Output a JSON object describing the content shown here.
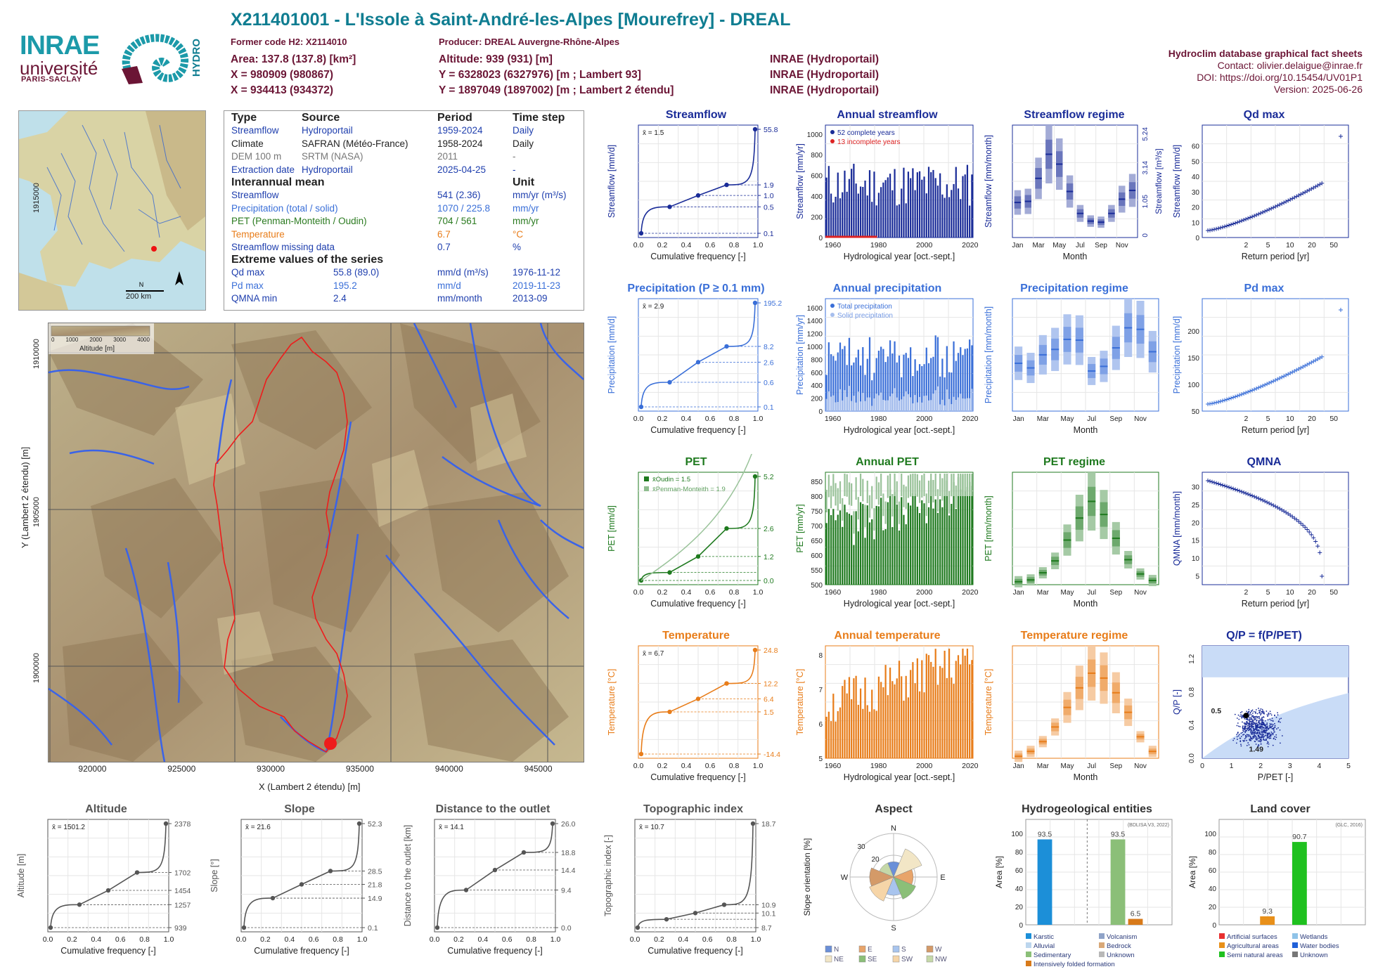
{
  "header": {
    "title": "X211401001 - L'Issole à Saint-André-les-Alpes [Mourefrey] - DREAL",
    "former_code": "Former code H2: X2114010",
    "producer": "Producer: DREAL Auvergne-Rhône-Alpes",
    "area": "Area: 137.8 (137.8) [km²]",
    "x93": "X = 980909 (980867)",
    "x2e": "X = 934413 (934372)",
    "altitude": "Altitude: 939 (931) [m]",
    "y93": "Y = 6328023 (6327976) [m ; Lambert 93]",
    "y2e": "Y = 1897049 (1897002) [m ; Lambert 2 étendu]",
    "src1": "INRAE (Hydroportail)",
    "src2": "INRAE (Hydroportail)",
    "src3": "INRAE (Hydroportail)",
    "db": "Hydroclim database graphical fact sheets",
    "contact": "Contact: olivier.delaigue@inrae.fr",
    "doi": "DOI: https://doi.org/10.15454/UV01P1",
    "version": "Version: 2025-06-26"
  },
  "logos": {
    "inrae": "INRAE",
    "univ": "université",
    "ps": "PARIS-SACLAY",
    "hydro": "HYDRO"
  },
  "infobox": {
    "head": [
      "Type",
      "Source",
      "Period",
      "Time step"
    ],
    "rows": [
      {
        "type": "Streamflow",
        "source": "Hydroportail",
        "period": "1959-2024",
        "step": "Daily",
        "color": "#1f3fae"
      },
      {
        "type": "Climate",
        "source": "SAFRAN (Météo-France)",
        "period": "1958-2024",
        "step": "Daily",
        "color": "#222"
      },
      {
        "type": "DEM 100 m",
        "source": "SRTM (NASA)",
        "period": "2011",
        "step": "-",
        "color": "#777"
      },
      {
        "type": "Extraction date",
        "source": "Hydroportail",
        "period": "2025-04-25",
        "step": "-",
        "color": "#1f3fae"
      }
    ],
    "mean_head": "Interannual mean",
    "unit_head": "Unit",
    "means": [
      {
        "label": "Streamflow",
        "value": "541 (2.36)",
        "unit": "mm/yr (m³/s)",
        "color": "#1f3fae"
      },
      {
        "label": "Precipitation (total / solid)",
        "value": "1070 / 225.8",
        "unit": "mm/yr",
        "color": "#3a6fd8"
      },
      {
        "label": "PET (Penman-Monteith / Oudin)",
        "value": "704 / 561",
        "unit": "mm/yr",
        "color": "#2a7a1f"
      },
      {
        "label": "Temperature",
        "value": "6.7",
        "unit": "°C",
        "color": "#e87d1a"
      },
      {
        "label": "Streamflow missing data",
        "value": "0.7",
        "unit": "%",
        "color": "#1f3fae"
      }
    ],
    "extreme_head": "Extreme values of the series",
    "extremes": [
      {
        "label": "Qd max",
        "value": "55.8 (89.0)",
        "unit": "mm/d (m³/s)",
        "date": "1976-11-12",
        "color": "#1f3fae"
      },
      {
        "label": "Pd max",
        "value": "195.2",
        "unit": "mm/d",
        "date": "2019-11-23",
        "color": "#3a6fd8"
      },
      {
        "label": "QMNA min",
        "value": "2.4",
        "unit": "mm/month",
        "date": "2013-09",
        "color": "#1f3fae"
      }
    ]
  },
  "map_small": {
    "scale": "200 km",
    "north": "N"
  },
  "map_big": {
    "xlabel": "X (Lambert 2 étendu) [m]",
    "ylabel": "Y (Lambert 2 étendu) [m]",
    "xticks": [
      "920000",
      "925000",
      "930000",
      "935000",
      "940000",
      "945000"
    ],
    "yticks": [
      "1900000",
      "1905000",
      "1910000",
      "1915000"
    ],
    "legend_title": "Altitude [m]",
    "legend_ticks": [
      "0",
      "1000",
      "2000",
      "3000",
      "4000"
    ]
  },
  "chart_data": [
    {
      "id": "streamflow",
      "type": "line",
      "title": "Streamflow",
      "xlabel": "Cumulative frequency [-]",
      "ylabel": "Streamflow [mm/d]",
      "mean": "x̄ = 1.5",
      "right_ticks": [
        "55.8",
        "1.9",
        "1.0",
        "0.5",
        "0.1"
      ],
      "x": [
        0,
        0.25,
        0.5,
        0.75,
        1
      ],
      "y": [
        0.1,
        0.5,
        1.0,
        1.9,
        55.8
      ],
      "color": "#1a2c98"
    },
    {
      "id": "annual_streamflow",
      "type": "bar",
      "title": "Annual streamflow",
      "xlabel": "Hydrological year [oct.-sept.]",
      "ylabel": "Streamflow [mm/yr]",
      "legend": [
        "52 complete years",
        "13 incomplete years"
      ],
      "x_ticks": [
        "1960",
        "1980",
        "2000",
        "2020"
      ],
      "y_ticks": [
        "0",
        "200",
        "400",
        "600",
        "800",
        "1000"
      ],
      "color": "#1a2c98"
    },
    {
      "id": "streamflow_regime",
      "type": "box",
      "title": "Streamflow regime",
      "xlabel": "Month",
      "ylabel": "Streamflow [mm/month]",
      "ylabel2": "Streamflow [m³/s]",
      "x_ticks": [
        "Jan",
        "Mar",
        "May",
        "Jul",
        "Sep",
        "Nov"
      ],
      "right_ticks": [
        "5.24",
        "3.14",
        "1.05",
        "0"
      ],
      "medians": [
        32,
        33,
        54,
        76,
        67,
        42,
        22,
        15,
        14,
        22,
        35,
        43
      ],
      "color": "#1a2c98"
    },
    {
      "id": "qd_max",
      "type": "scatter",
      "title": "Qd max",
      "xlabel": "Return period [yr]",
      "ylabel": "Streamflow [mm/d]",
      "x_ticks": [
        "2",
        "5",
        "10",
        "20",
        "50"
      ],
      "y_ticks": [
        "0",
        "10",
        "20",
        "30",
        "40",
        "50",
        "60"
      ],
      "max": 56,
      "color": "#1a2c98"
    },
    {
      "id": "precipitation",
      "type": "line",
      "title": "Precipitation (P ≥ 0.1 mm)",
      "xlabel": "Cumulative frequency [-]",
      "ylabel": "Precipitation [mm/d]",
      "mean": "x̄ = 2.9",
      "right_ticks": [
        "195.2",
        "8.2",
        "2.6",
        "0.6",
        "0.1"
      ],
      "x": [
        0,
        0.25,
        0.5,
        0.75,
        1
      ],
      "y": [
        0.1,
        0.6,
        2.6,
        8.2,
        195.2
      ],
      "color": "#3a6fd8"
    },
    {
      "id": "annual_precipitation",
      "type": "bar",
      "title": "Annual precipitation",
      "xlabel": "Hydrological year [oct.-sept.]",
      "ylabel": "Precipitation [mm/yr]",
      "legend": [
        "Total precipitation",
        "Solid precipitation"
      ],
      "x_ticks": [
        "1960",
        "1980",
        "2000",
        "2020"
      ],
      "y_ticks": [
        "0",
        "200",
        "400",
        "600",
        "800",
        "1000",
        "1200",
        "1400",
        "1600"
      ],
      "color": "#3a6fd8"
    },
    {
      "id": "precipitation_regime",
      "type": "box",
      "title": "Precipitation regime",
      "xlabel": "Month",
      "ylabel": "Precipitation [mm/month]",
      "x_ticks": [
        "Jan",
        "Mar",
        "May",
        "Jul",
        "Sep",
        "Nov"
      ],
      "medians": [
        62,
        56,
        73,
        80,
        93,
        92,
        52,
        58,
        82,
        108,
        106,
        77
      ],
      "color": "#3a6fd8"
    },
    {
      "id": "pd_max",
      "type": "scatter",
      "title": "Pd max",
      "xlabel": "Return period [yr]",
      "ylabel": "Precipitation [mm/d]",
      "x_ticks": [
        "2",
        "5",
        "10",
        "20",
        "50"
      ],
      "y_ticks": [
        "50",
        "100",
        "150",
        "200"
      ],
      "max": 195,
      "color": "#3a6fd8"
    },
    {
      "id": "pet",
      "type": "line",
      "title": "PET",
      "xlabel": "Cumulative frequency [-]",
      "ylabel": "PET [mm/d]",
      "legend": [
        "x̄Oudin = 1.5",
        "x̄Penman-Monteith = 1.9"
      ],
      "right_ticks": [
        "5.2",
        "2.6",
        "1.2",
        "0.0"
      ],
      "x": [
        0,
        0.25,
        0.5,
        0.75,
        1
      ],
      "y": [
        0,
        0.4,
        1.2,
        2.6,
        5.2
      ],
      "color": "#1f7a1f"
    },
    {
      "id": "annual_pet",
      "type": "bar",
      "title": "Annual PET",
      "xlabel": "Hydrological year [oct.-sept.]",
      "ylabel": "PET [mm/yr]",
      "x_ticks": [
        "1960",
        "1980",
        "2000",
        "2020"
      ],
      "y_ticks": [
        "500",
        "550",
        "600",
        "650",
        "700",
        "750",
        "800",
        "850"
      ],
      "color": "#1f7a1f"
    },
    {
      "id": "pet_regime",
      "type": "box",
      "title": "PET regime",
      "xlabel": "Month",
      "ylabel": "PET [mm/month]",
      "x_ticks": [
        "Jan",
        "Mar",
        "May",
        "Jul",
        "Sep",
        "Nov"
      ],
      "medians": [
        5,
        8,
        20,
        40,
        75,
        112,
        140,
        118,
        78,
        42,
        18,
        7
      ],
      "color": "#1f7a1f"
    },
    {
      "id": "qmna",
      "type": "scatter",
      "title": "QMNA",
      "xlabel": "Return period [yr]",
      "ylabel": "QMNA [mm/month]",
      "x_ticks": [
        "2",
        "5",
        "10",
        "20",
        "50"
      ],
      "y_ticks": [
        "5",
        "10",
        "15",
        "20",
        "25",
        "30"
      ],
      "color": "#1a2c98"
    },
    {
      "id": "temperature",
      "type": "line",
      "title": "Temperature",
      "xlabel": "Cumulative frequency [-]",
      "ylabel": "Temperature [°C]",
      "mean": "x̄ = 6.7",
      "right_ticks": [
        "24.8",
        "12.2",
        "6.4",
        "1.5",
        "-14.4"
      ],
      "x": [
        0,
        0.25,
        0.5,
        0.75,
        1
      ],
      "y": [
        -14.4,
        1.5,
        6.4,
        12.2,
        24.8
      ],
      "color": "#e87d1a"
    },
    {
      "id": "annual_temperature",
      "type": "bar",
      "title": "Annual temperature",
      "xlabel": "Hydrological year [oct.-sept.]",
      "ylabel": "Temperature [°C]",
      "x_ticks": [
        "1960",
        "1980",
        "2000",
        "2020"
      ],
      "y_ticks": [
        "5",
        "6",
        "7",
        "8"
      ],
      "color": "#e87d1a"
    },
    {
      "id": "temperature_regime",
      "type": "box",
      "title": "Temperature regime",
      "xlabel": "Month",
      "ylabel": "Temperature [°C]",
      "x_ticks": [
        "Jan",
        "Mar",
        "May",
        "Jul",
        "Sep",
        "Nov"
      ],
      "medians": [
        -1,
        0,
        2,
        5,
        9,
        13,
        16,
        15,
        12,
        8,
        3,
        0
      ],
      "color": "#e87d1a"
    },
    {
      "id": "qp_ppet",
      "type": "scatter",
      "title": "Q/P = f(P/PET)",
      "xlabel": "P/PET [-]",
      "ylabel": "Q/P [-]",
      "annotations": [
        "0.5",
        "1.49"
      ],
      "x_ticks": [
        "0",
        "1",
        "2",
        "3",
        "4",
        "5"
      ],
      "y_ticks": [
        "0.0",
        "0.4",
        "0.8",
        "1.2"
      ],
      "color": "#1a2c98"
    },
    {
      "id": "altitude",
      "type": "line",
      "title": "Altitude",
      "xlabel": "Cumulative frequency [-]",
      "ylabel": "Altitude [m]",
      "mean": "x̄ = 1501.2",
      "right_ticks": [
        "2378",
        "1702",
        "1454",
        "1257",
        "939"
      ],
      "x": [
        0,
        0.25,
        0.5,
        0.75,
        1
      ],
      "y": [
        939,
        1257,
        1454,
        1702,
        2378
      ],
      "color": "#555"
    },
    {
      "id": "slope",
      "type": "line",
      "title": "Slope",
      "xlabel": "Cumulative frequency [-]",
      "ylabel": "Slope [°]",
      "mean": "x̄ = 21.6",
      "right_ticks": [
        "52.3",
        "28.5",
        "21.8",
        "14.9",
        "0.1"
      ],
      "x": [
        0,
        0.25,
        0.5,
        0.75,
        1
      ],
      "y": [
        0.1,
        14.9,
        21.8,
        28.5,
        52.3
      ],
      "color": "#555"
    },
    {
      "id": "distance",
      "type": "line",
      "title": "Distance to the outlet",
      "xlabel": "Cumulative frequency [-]",
      "ylabel": "Distance to the outlet [km]",
      "mean": "x̄ = 14.1",
      "right_ticks": [
        "26.0",
        "18.8",
        "14.4",
        "9.4",
        "0.0"
      ],
      "x": [
        0,
        0.25,
        0.5,
        0.75,
        1
      ],
      "y": [
        0,
        9.4,
        14.4,
        18.8,
        26.0
      ],
      "color": "#555"
    },
    {
      "id": "topo",
      "type": "line",
      "title": "Topographic index",
      "xlabel": "Cumulative frequency [-]",
      "ylabel": "Topographic index [-]",
      "mean": "x̄ = 10.7",
      "right_ticks": [
        "18.7",
        "10.9",
        "10.1",
        "8.7"
      ],
      "x": [
        0,
        0.25,
        0.5,
        0.75,
        1
      ],
      "y": [
        8.7,
        9.5,
        10.1,
        10.9,
        18.7
      ],
      "color": "#555"
    },
    {
      "id": "aspect",
      "type": "pie",
      "title": "Aspect",
      "ylabel": "Slope orientation [%]",
      "dirs": [
        "N",
        "E",
        "S",
        "W"
      ],
      "legend": [
        "N",
        "E",
        "S",
        "W",
        "NE",
        "SE",
        "SW",
        "NW"
      ],
      "rings": [
        "20",
        "30"
      ]
    },
    {
      "id": "hydrogeol",
      "type": "bar",
      "title": "Hydrogeological entities",
      "source": "(BDLISA V3, 2022)",
      "ylabel": "Area [%]",
      "values": [
        93.5,
        93.5,
        6.5
      ],
      "legend": [
        "Karstic",
        "Volcanism",
        "Alluvial",
        "Bedrock",
        "Sedimentary",
        "Unknown",
        "Intensively folded formation"
      ]
    },
    {
      "id": "landcover",
      "type": "bar",
      "title": "Land cover",
      "source": "(GLC, 2016)",
      "ylabel": "Area [%]",
      "values": [
        9.3,
        90.7
      ],
      "legend": [
        "Artificial surfaces",
        "Wetlands",
        "Agricultural areas",
        "Water bodies",
        "Semi natural areas",
        "Unknown"
      ]
    }
  ]
}
